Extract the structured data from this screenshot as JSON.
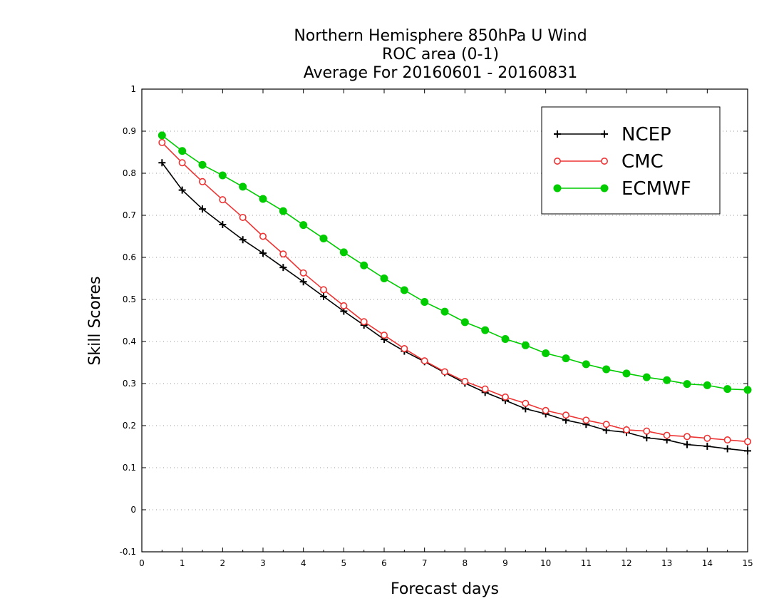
{
  "chart_data": {
    "type": "line",
    "title_lines": [
      "Northern Hemisphere 850hPa U Wind",
      "ROC area (0-1)",
      "Average For 20160601 - 20160831"
    ],
    "xlabel": "Forecast days",
    "ylabel": "Skill Scores",
    "xlim": [
      0,
      15
    ],
    "ylim": [
      -0.1,
      1
    ],
    "xticks": [
      0,
      1,
      2,
      3,
      4,
      5,
      6,
      7,
      8,
      9,
      10,
      11,
      12,
      13,
      14,
      15
    ],
    "xtick_labels": [
      "0",
      "1",
      "2",
      "3",
      "4",
      "5",
      "6",
      "7",
      "8",
      "9",
      "10",
      "11",
      "12",
      "13",
      "14",
      "15"
    ],
    "yticks": [
      -0.1,
      0,
      0.1,
      0.2,
      0.3,
      0.4,
      0.5,
      0.6,
      0.7,
      0.8,
      0.9,
      1
    ],
    "ytick_labels": [
      "-0.1",
      "0",
      "0.1",
      "0.2",
      "0.3",
      "0.4",
      "0.5",
      "0.6",
      "0.7",
      "0.8",
      "0.9",
      "1"
    ],
    "grid": "horizontal dotted",
    "legend_position": "top-right",
    "x": [
      0.5,
      1,
      1.5,
      2,
      2.5,
      3,
      3.5,
      4,
      4.5,
      5,
      5.5,
      6,
      6.5,
      7,
      7.5,
      8,
      8.5,
      9,
      9.5,
      10,
      10.5,
      11,
      11.5,
      12,
      12.5,
      13,
      13.5,
      14,
      14.5,
      15
    ],
    "series": [
      {
        "name": "NCEP",
        "color": "#000000",
        "marker": "plus",
        "values": [
          0.825,
          0.76,
          0.715,
          0.678,
          0.642,
          0.61,
          0.576,
          0.542,
          0.507,
          0.472,
          0.439,
          0.405,
          0.377,
          0.352,
          0.326,
          0.301,
          0.279,
          0.26,
          0.24,
          0.228,
          0.213,
          0.203,
          0.189,
          0.184,
          0.171,
          0.166,
          0.155,
          0.151,
          0.145,
          0.14
        ]
      },
      {
        "name": "CMC",
        "color": "#ee3333",
        "marker": "open-circle",
        "values": [
          0.873,
          0.825,
          0.78,
          0.737,
          0.695,
          0.65,
          0.608,
          0.563,
          0.523,
          0.485,
          0.447,
          0.415,
          0.383,
          0.354,
          0.328,
          0.305,
          0.287,
          0.268,
          0.253,
          0.236,
          0.225,
          0.213,
          0.203,
          0.19,
          0.187,
          0.177,
          0.174,
          0.17,
          0.166,
          0.162
        ]
      },
      {
        "name": "ECMWF",
        "color": "#00cc00",
        "marker": "filled-circle",
        "values": [
          0.89,
          0.853,
          0.82,
          0.795,
          0.768,
          0.739,
          0.71,
          0.677,
          0.645,
          0.612,
          0.581,
          0.55,
          0.522,
          0.494,
          0.471,
          0.446,
          0.427,
          0.406,
          0.391,
          0.372,
          0.36,
          0.346,
          0.334,
          0.324,
          0.315,
          0.308,
          0.299,
          0.296,
          0.287,
          0.285
        ]
      }
    ]
  }
}
